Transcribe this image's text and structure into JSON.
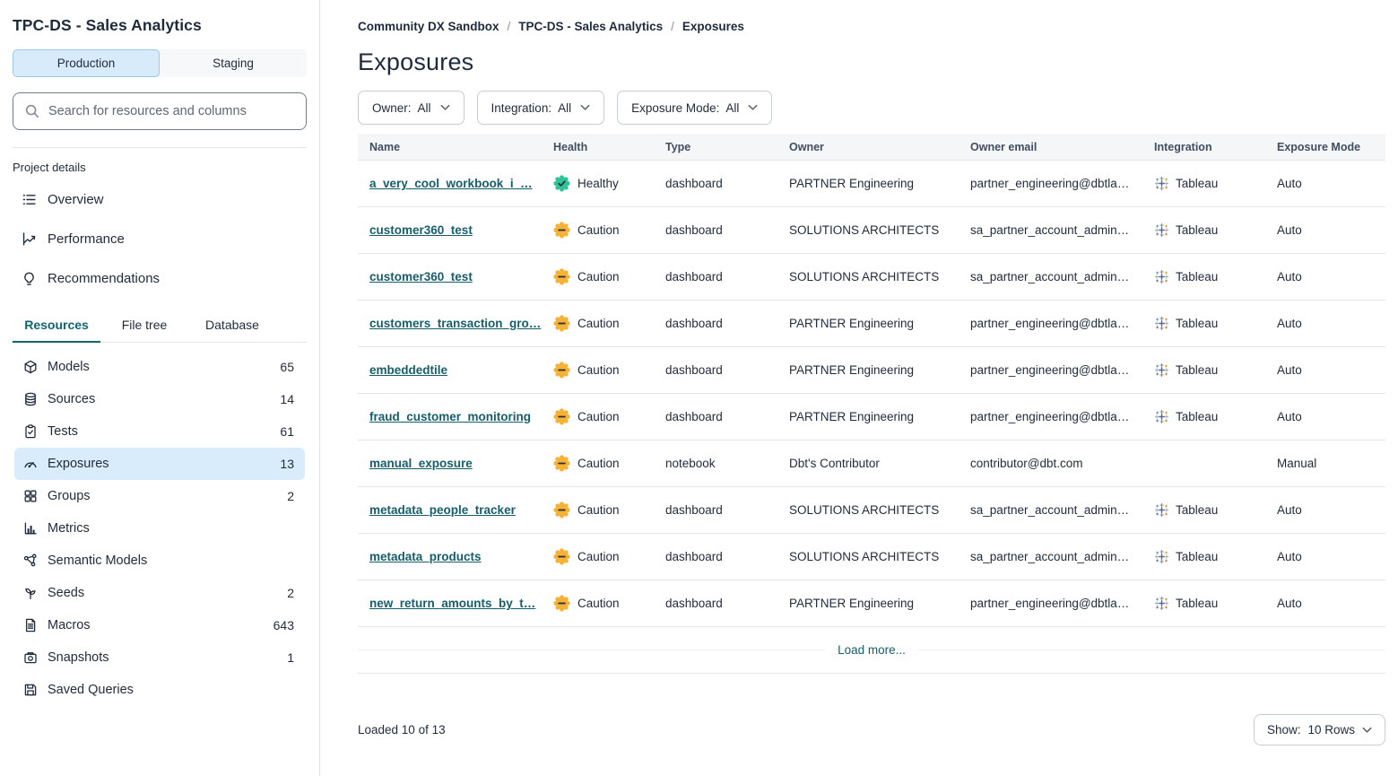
{
  "sidebar": {
    "project_title": "TPC-DS - Sales Analytics",
    "environment_toggle": {
      "options": [
        {
          "label": "Production",
          "active": true
        },
        {
          "label": "Staging",
          "active": false
        }
      ]
    },
    "search": {
      "placeholder": "Search for resources and columns",
      "icon": "search-icon"
    },
    "project_details": {
      "label": "Project details",
      "items": [
        {
          "label": "Overview",
          "icon": "overview-list-icon"
        },
        {
          "label": "Performance",
          "icon": "performance-chart-icon"
        },
        {
          "label": "Recommendations",
          "icon": "lightbulb-icon"
        }
      ]
    },
    "tabs": [
      {
        "label": "Resources",
        "active": true
      },
      {
        "label": "File tree",
        "active": false
      },
      {
        "label": "Database",
        "active": false
      }
    ],
    "resources": [
      {
        "label": "Models",
        "count": "65",
        "icon": "cube-icon",
        "selected": false
      },
      {
        "label": "Sources",
        "count": "14",
        "icon": "database-icon",
        "selected": false
      },
      {
        "label": "Tests",
        "count": "61",
        "icon": "clipboard-check-icon",
        "selected": false
      },
      {
        "label": "Exposures",
        "count": "13",
        "icon": "gauge-icon",
        "selected": true
      },
      {
        "label": "Groups",
        "count": "2",
        "icon": "grid-icon",
        "selected": false
      },
      {
        "label": "Metrics",
        "count": "",
        "icon": "bar-chart-icon",
        "selected": false
      },
      {
        "label": "Semantic Models",
        "count": "",
        "icon": "network-icon",
        "selected": false
      },
      {
        "label": "Seeds",
        "count": "2",
        "icon": "sprout-icon",
        "selected": false
      },
      {
        "label": "Macros",
        "count": "643",
        "icon": "file-text-icon",
        "selected": false
      },
      {
        "label": "Snapshots",
        "count": "1",
        "icon": "camera-icon",
        "selected": false
      },
      {
        "label": "Saved Queries",
        "count": "",
        "icon": "save-icon",
        "selected": false
      }
    ]
  },
  "main": {
    "breadcrumb": {
      "items": [
        "Community DX Sandbox",
        "TPC-DS - Sales Analytics",
        "Exposures"
      ],
      "separator": "/"
    },
    "page_title": "Exposures",
    "filters": [
      {
        "label": "Owner:",
        "value": "All"
      },
      {
        "label": "Integration:",
        "value": "All"
      },
      {
        "label": "Exposure Mode:",
        "value": "All"
      }
    ],
    "table": {
      "columns": [
        "Name",
        "Health",
        "Type",
        "Owner",
        "Owner email",
        "Integration",
        "Exposure Mode"
      ],
      "rows": [
        {
          "name": "a_very_cool_workbook_i_…",
          "health": "Healthy",
          "type": "dashboard",
          "owner": "PARTNER Engineering",
          "owner_email": "partner_engineering@dbtla…",
          "integration": "Tableau",
          "exposure_mode": "Auto"
        },
        {
          "name": "customer360_test",
          "health": "Caution",
          "type": "dashboard",
          "owner": "SOLUTIONS ARCHITECTS",
          "owner_email": "sa_partner_account_admin…",
          "integration": "Tableau",
          "exposure_mode": "Auto"
        },
        {
          "name": "customer360_test",
          "health": "Caution",
          "type": "dashboard",
          "owner": "SOLUTIONS ARCHITECTS",
          "owner_email": "sa_partner_account_admin…",
          "integration": "Tableau",
          "exposure_mode": "Auto"
        },
        {
          "name": "customers_transaction_gro…",
          "health": "Caution",
          "type": "dashboard",
          "owner": "PARTNER Engineering",
          "owner_email": "partner_engineering@dbtla…",
          "integration": "Tableau",
          "exposure_mode": "Auto"
        },
        {
          "name": "embeddedtile",
          "health": "Caution",
          "type": "dashboard",
          "owner": "PARTNER Engineering",
          "owner_email": "partner_engineering@dbtla…",
          "integration": "Tableau",
          "exposure_mode": "Auto"
        },
        {
          "name": "fraud_customer_monitoring",
          "health": "Caution",
          "type": "dashboard",
          "owner": "PARTNER Engineering",
          "owner_email": "partner_engineering@dbtla…",
          "integration": "Tableau",
          "exposure_mode": "Auto"
        },
        {
          "name": "manual_exposure",
          "health": "Caution",
          "type": "notebook",
          "owner": "Dbt's Contributor",
          "owner_email": "contributor@dbt.com",
          "integration": "",
          "exposure_mode": "Manual"
        },
        {
          "name": "metadata_people_tracker",
          "health": "Caution",
          "type": "dashboard",
          "owner": "SOLUTIONS ARCHITECTS",
          "owner_email": "sa_partner_account_admin…",
          "integration": "Tableau",
          "exposure_mode": "Auto"
        },
        {
          "name": "metadata_products",
          "health": "Caution",
          "type": "dashboard",
          "owner": "SOLUTIONS ARCHITECTS",
          "owner_email": "sa_partner_account_admin…",
          "integration": "Tableau",
          "exposure_mode": "Auto"
        },
        {
          "name": "new_return_amounts_by_t…",
          "health": "Caution",
          "type": "dashboard",
          "owner": "PARTNER Engineering",
          "owner_email": "partner_engineering@dbtla…",
          "integration": "Tableau",
          "exposure_mode": "Auto"
        }
      ],
      "load_more_label": "Load more..."
    },
    "footer": {
      "loaded_text": "Loaded 10 of 13",
      "show_label": "Show:",
      "show_value": "10 Rows"
    }
  },
  "colors": {
    "accent_teal": "#155e6b",
    "healthy_badge": "#31c295",
    "caution_badge": "#f5b138",
    "selected_item_bg": "#d9ecfb",
    "active_env_bg": "#d7ebfb"
  }
}
